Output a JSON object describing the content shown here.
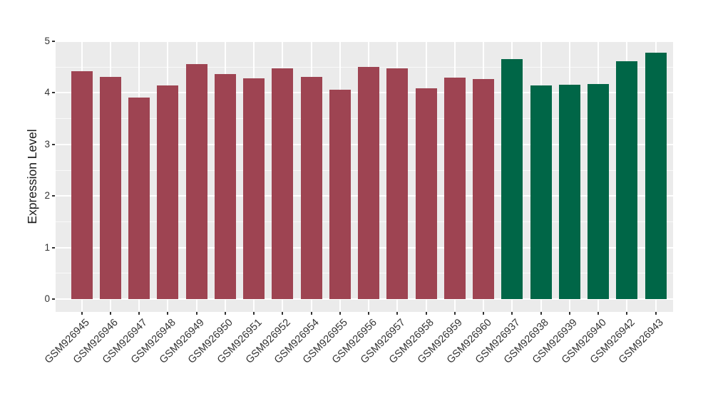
{
  "chart_data": {
    "type": "bar",
    "title": "",
    "xlabel": "",
    "ylabel": "Expression Level",
    "ylim": [
      0,
      5
    ],
    "yticks": [
      "0",
      "1",
      "2",
      "3",
      "4",
      "5"
    ],
    "grid": true,
    "legend_position": "none",
    "panel_bg": "#EBEBEB",
    "gridline_color": "#FFFFFF",
    "tick_label_color": "#333333",
    "categories": [
      "GSM926945",
      "GSM926946",
      "GSM926947",
      "GSM926948",
      "GSM926949",
      "GSM926950",
      "GSM926951",
      "GSM926952",
      "GSM926954",
      "GSM926955",
      "GSM926956",
      "GSM926957",
      "GSM926958",
      "GSM926959",
      "GSM926960",
      "GSM926937",
      "GSM926938",
      "GSM926939",
      "GSM926940",
      "GSM926942",
      "GSM926943"
    ],
    "values": [
      4.42,
      4.31,
      3.91,
      4.15,
      4.56,
      4.36,
      4.28,
      4.47,
      4.31,
      4.06,
      4.5,
      4.47,
      4.09,
      4.29,
      4.27,
      4.65,
      4.14,
      4.16,
      4.17,
      4.62,
      4.78
    ],
    "bar_groups": [
      0,
      0,
      0,
      0,
      0,
      0,
      0,
      0,
      0,
      0,
      0,
      0,
      0,
      0,
      0,
      1,
      1,
      1,
      1,
      1,
      1
    ],
    "group_colors": [
      "#9E4452",
      "#006647"
    ]
  }
}
